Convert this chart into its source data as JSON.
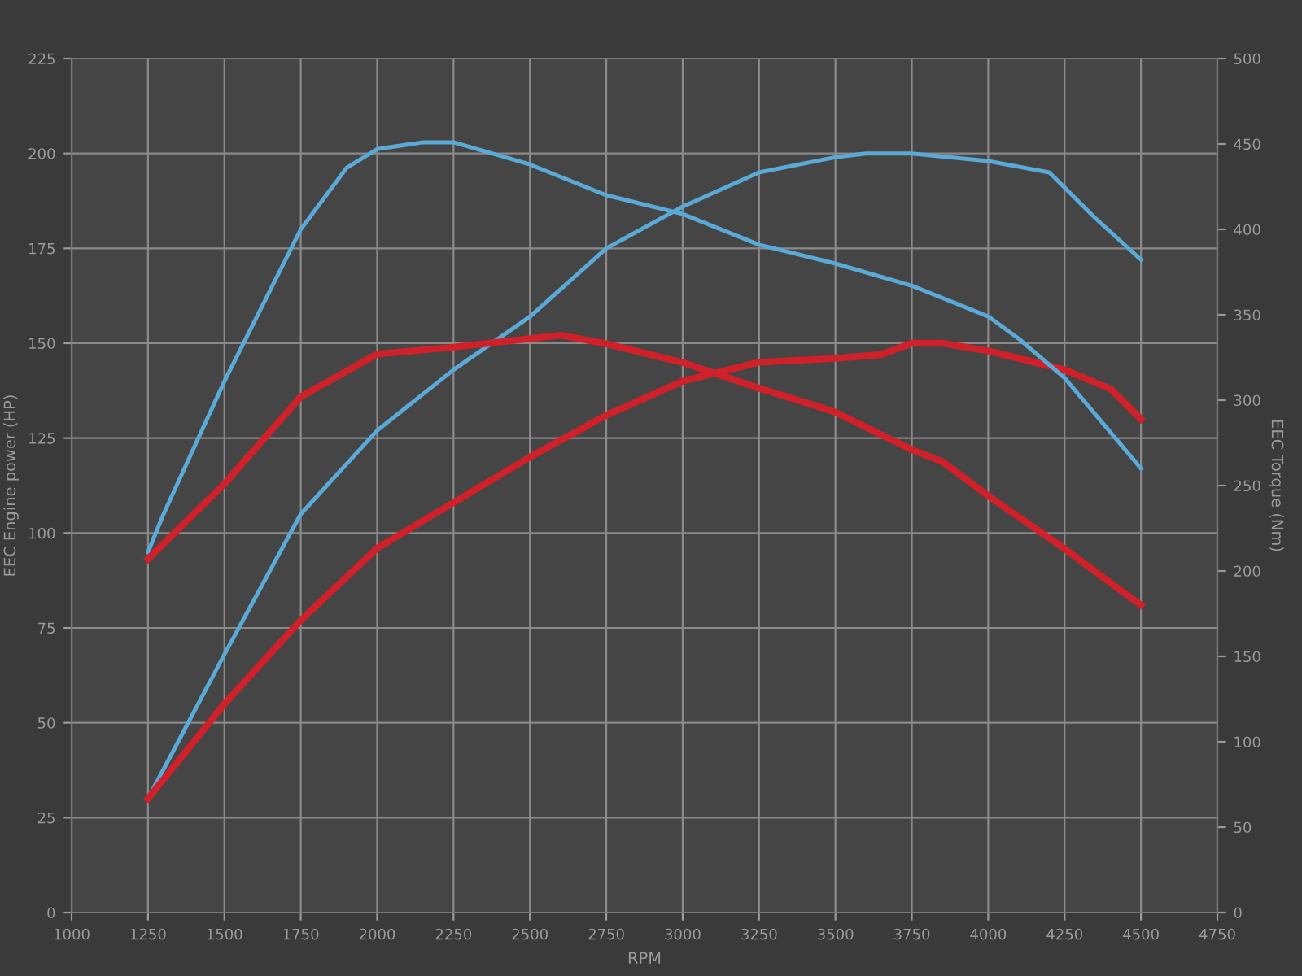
{
  "chart_data": {
    "type": "line",
    "xlabel": "RPM",
    "ylabel": "EEC Engine power (HP)",
    "y2label": "EEC Torque (Nm)",
    "xlim": [
      1000,
      4750
    ],
    "xticks": [
      1000,
      1250,
      1500,
      1750,
      2000,
      2250,
      2500,
      2750,
      3000,
      3250,
      3500,
      3750,
      4000,
      4250,
      4500,
      4750
    ],
    "ylim": [
      0,
      225
    ],
    "yticks": [
      0,
      25,
      50,
      75,
      100,
      125,
      150,
      175,
      200,
      225
    ],
    "y2lim": [
      0,
      500
    ],
    "y2ticks": [
      0,
      50,
      100,
      150,
      200,
      250,
      300,
      350,
      400,
      450,
      500
    ],
    "grid": true,
    "marker": "none",
    "line_style": "solid",
    "series": [
      {
        "color": "#5aa9d6",
        "x": [
          1250,
          1500,
          1750,
          2000,
          2250,
          2500,
          2750,
          3000,
          3250,
          3500,
          3600,
          3750,
          4000,
          4200,
          4350,
          4500
        ],
        "values": [
          30,
          68,
          105,
          127,
          143,
          157,
          175,
          186,
          195,
          199,
          200,
          200,
          198,
          195,
          183,
          172
        ]
      },
      {
        "color": "#d0202a",
        "x": [
          1250,
          1500,
          1750,
          2000,
          2250,
          2500,
          2750,
          3000,
          3250,
          3500,
          3650,
          3750,
          3850,
          4000,
          4250,
          4400,
          4500
        ],
        "values": [
          30,
          55,
          77,
          96,
          108,
          120,
          131,
          140,
          145,
          146,
          147,
          150,
          150,
          148,
          143,
          138,
          130
        ]
      },
      {
        "color": "#5aa9d6",
        "axis": "y2",
        "x": [
          1250,
          1300,
          1500,
          1750,
          1900,
          2000,
          2150,
          2250,
          2500,
          2750,
          3000,
          3250,
          3500,
          3750,
          4000,
          4100,
          4250,
          4500
        ],
        "values": [
          211,
          233,
          311,
          400,
          436,
          447,
          451,
          451,
          438,
          420,
          409,
          391,
          380,
          367,
          349,
          336,
          313,
          260
        ]
      },
      {
        "color": "#d0202a",
        "axis": "y2",
        "x": [
          1250,
          1500,
          1750,
          2000,
          2250,
          2500,
          2600,
          2750,
          3000,
          3250,
          3500,
          3750,
          3850,
          4000,
          4250,
          4400,
          4500
        ],
        "values": [
          207,
          251,
          302,
          327,
          331,
          336,
          338,
          333,
          322,
          307,
          293,
          271,
          264,
          244,
          213,
          193,
          180
        ]
      }
    ]
  }
}
